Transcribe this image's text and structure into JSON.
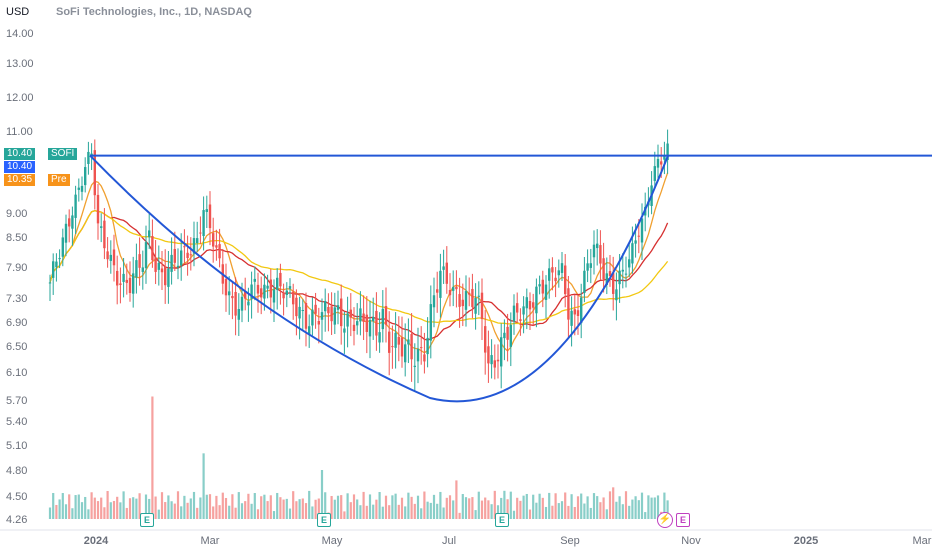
{
  "header": {
    "currency": "USD",
    "title": "SoFi Technologies, Inc., 1D, NASDAQ"
  },
  "price_tags": [
    {
      "value": "10.40",
      "name": "SOFI",
      "color": "#26a69a"
    },
    {
      "value": "10.40",
      "name": "",
      "color": "#2962ff"
    },
    {
      "value": "10.35",
      "name": "Pre",
      "color": "#f7931a"
    }
  ],
  "colors": {
    "up": "#26a69a",
    "down": "#ef5350",
    "vol_up": "#26a69a",
    "vol_down": "#ef5350",
    "ma_fast": "#f0a030",
    "ma_mid": "#d63030",
    "ma_slow": "#f2c811",
    "pattern": "#2357d6"
  },
  "events": {
    "earnings_label": "E",
    "dividend_icon": "lightning-icon"
  },
  "chart_data": {
    "type": "candlestick",
    "title": "SoFi Technologies, Inc., 1D, NASDAQ",
    "ylabel": "USD",
    "y_ticks": [
      "14.00",
      "13.00",
      "12.00",
      "11.00",
      "9.00",
      "8.50",
      "7.90",
      "7.30",
      "6.90",
      "6.50",
      "6.10",
      "5.70",
      "5.40",
      "5.10",
      "4.80",
      "4.50",
      "4.26"
    ],
    "x_ticks": [
      "2024",
      "Mar",
      "May",
      "Jul",
      "Sep",
      "Nov",
      "2025",
      "Mar"
    ],
    "last_price": 10.4,
    "resistance_level": 10.4,
    "pattern": "cup",
    "ma_fast_label": "",
    "waypoints": [
      [
        0,
        7.6
      ],
      [
        4,
        8.3
      ],
      [
        8,
        9.4
      ],
      [
        11,
        10.2
      ],
      [
        13,
        10.4
      ],
      [
        15,
        8.6
      ],
      [
        18,
        8.2
      ],
      [
        22,
        7.7
      ],
      [
        25,
        7.5
      ],
      [
        29,
        8.0
      ],
      [
        31,
        8.6
      ],
      [
        33,
        8.0
      ],
      [
        36,
        7.7
      ],
      [
        40,
        8.0
      ],
      [
        43,
        8.3
      ],
      [
        46,
        8.5
      ],
      [
        48,
        9.05
      ],
      [
        50,
        8.6
      ],
      [
        53,
        7.9
      ],
      [
        56,
        7.4
      ],
      [
        60,
        7.1
      ],
      [
        63,
        7.4
      ],
      [
        66,
        7.5
      ],
      [
        70,
        7.6
      ],
      [
        74,
        7.3
      ],
      [
        78,
        7.1
      ],
      [
        82,
        7.0
      ],
      [
        86,
        6.95
      ],
      [
        90,
        7.1
      ],
      [
        94,
        6.95
      ],
      [
        98,
        6.8
      ],
      [
        102,
        6.85
      ],
      [
        104,
        7.1
      ],
      [
        106,
        6.6
      ],
      [
        109,
        6.4
      ],
      [
        113,
        6.4
      ],
      [
        117,
        6.5
      ],
      [
        119,
        7.0
      ],
      [
        122,
        7.7
      ],
      [
        126,
        7.5
      ],
      [
        130,
        7.3
      ],
      [
        133,
        7.2
      ],
      [
        135,
        6.9
      ],
      [
        137,
        6.2
      ],
      [
        140,
        6.5
      ],
      [
        144,
        6.8
      ],
      [
        148,
        7.1
      ],
      [
        152,
        7.5
      ],
      [
        156,
        7.6
      ],
      [
        160,
        7.8
      ],
      [
        162,
        7.2
      ],
      [
        164,
        7.0
      ],
      [
        167,
        7.6
      ],
      [
        170,
        8.25
      ],
      [
        173,
        7.9
      ],
      [
        176,
        7.6
      ],
      [
        179,
        7.7
      ],
      [
        182,
        8.1
      ],
      [
        184,
        8.7
      ],
      [
        186,
        9.1
      ],
      [
        188,
        9.9
      ],
      [
        190,
        10.2
      ],
      [
        193,
        10.4
      ]
    ],
    "volume_spikes": [
      [
        32,
        5.75
      ],
      [
        48,
        5.0
      ],
      [
        85,
        4.8
      ],
      [
        127,
        4.68
      ],
      [
        142,
        4.56
      ],
      [
        176,
        4.6
      ]
    ],
    "volume_baseline": 4.26
  }
}
